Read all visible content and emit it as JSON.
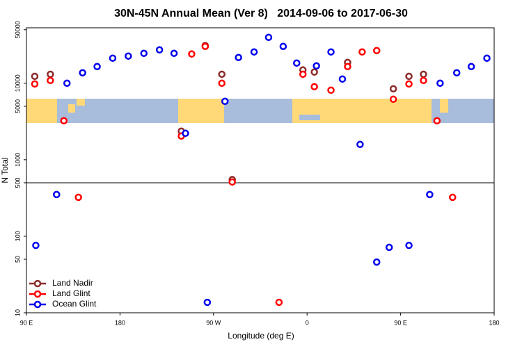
{
  "chart_data": {
    "type": "scatter",
    "title": "30N-45N Annual Mean (Ver 8)   2014-09-06 to 2017-06-30",
    "xlabel": "Longitude (deg E)",
    "ylabel": "N Total",
    "xlim": [
      90,
      540
    ],
    "xticks": [
      {
        "value": 90,
        "label": "90 E"
      },
      180,
      {
        "value": 270,
        "label": "90 W"
      },
      {
        "value": 360,
        "label": "0"
      },
      {
        "value": 450,
        "label": "90 E"
      },
      {
        "value": 540,
        "label": "180"
      }
    ],
    "ylim": [
      10,
      53000
    ],
    "log_y": true,
    "yticks": [
      10,
      50,
      100,
      500,
      1000,
      5000,
      10000,
      50000
    ],
    "reference_line": 500,
    "legend": "lower left",
    "series": [
      {
        "name": "Land Nadir",
        "color": "#8b2a2a",
        "x": [
          98,
          113,
          239,
          262,
          278,
          288,
          356,
          367,
          399,
          443,
          458,
          472
        ],
        "values": [
          12300,
          13100,
          2360,
          31000,
          13100,
          550,
          14900,
          14000,
          18700,
          8460,
          12300,
          13100
        ]
      },
      {
        "name": "Land Glint",
        "color": "#ff0000",
        "x": [
          98,
          113,
          126,
          140,
          239,
          249,
          262,
          278,
          288,
          333,
          356,
          367,
          383,
          399,
          413,
          427,
          443,
          458,
          472,
          485,
          500
        ],
        "values": [
          9790,
          10870,
          3230,
          323,
          2040,
          24100,
          30300,
          10000,
          512,
          13.7,
          13100,
          9010,
          8110,
          16500,
          25650,
          26700,
          6180,
          9790,
          10870,
          3230,
          323
        ]
      },
      {
        "name": "Ocean Glint",
        "color": "#0000ee",
        "x": [
          99,
          119,
          129,
          144,
          158,
          173,
          188,
          203,
          218,
          232,
          243,
          264,
          281,
          294,
          309,
          323,
          337,
          350,
          369,
          383,
          394,
          411,
          427,
          439,
          458,
          478,
          488,
          504,
          518,
          533
        ],
        "values": [
          76,
          351,
          10000,
          13690,
          16500,
          21250,
          22630,
          24600,
          27300,
          24600,
          2215,
          13.7,
          5800,
          21700,
          25650,
          39800,
          30300,
          18350,
          16850,
          25650,
          11340,
          1585,
          46,
          71.6,
          76,
          351,
          10000,
          13690,
          16500,
          21250
        ]
      }
    ]
  }
}
